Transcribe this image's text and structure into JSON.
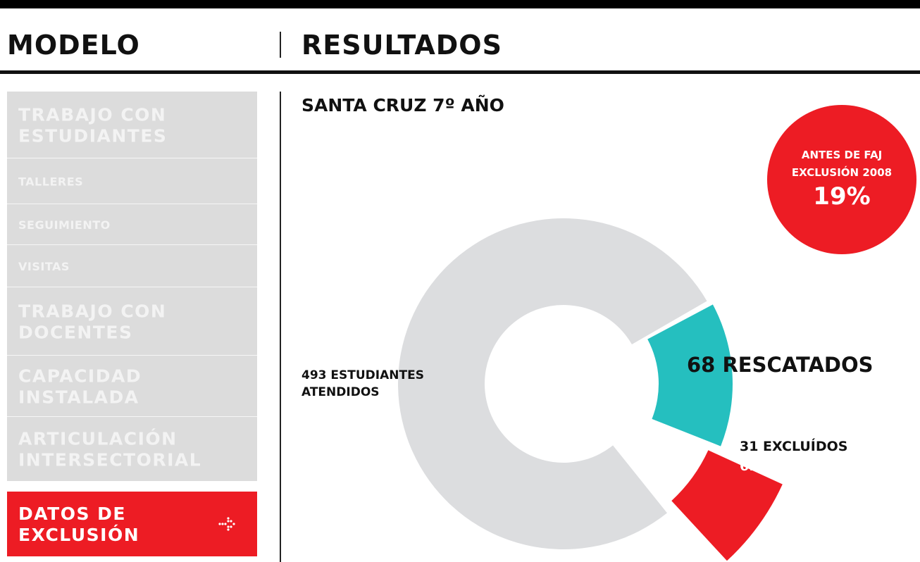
{
  "header": {
    "left": "MODELO",
    "right": "RESULTADOS"
  },
  "sidebar": [
    {
      "lines": [
        "TRABAJO CON",
        "ESTUDIANTES"
      ],
      "size": "large"
    },
    {
      "lines": [
        "TALLERES"
      ],
      "size": "small"
    },
    {
      "lines": [
        "SEGUIMIENTO"
      ],
      "size": "small"
    },
    {
      "lines": [
        "VISITAS"
      ],
      "size": "small"
    },
    {
      "lines": [
        "TRABAJO CON",
        "DOCENTES"
      ],
      "size": "large"
    },
    {
      "lines": [
        "CAPACIDAD",
        "INSTALADA"
      ],
      "size": "large"
    },
    {
      "lines": [
        "ARTICULACIÓN",
        "INTERSECTORIAL"
      ],
      "size": "large"
    },
    {
      "lines": [
        "DATOS DE",
        "EXCLUSIÓN"
      ],
      "size": "large",
      "active": true
    }
  ],
  "badge": {
    "lines": [
      "ANTES DE FAJ",
      "EXCLUSIÓN 2008"
    ],
    "value": "19%"
  },
  "chart_data": {
    "type": "donut",
    "title": "SANTA CRUZ 7º AÑO",
    "values": [
      493,
      68,
      31
    ],
    "labels": [
      [
        "493 ESTUDIANTES",
        "ATENDIDOS"
      ],
      [
        "68 RESCATADOS"
      ],
      [
        "31 EXCLUÍDOS",
        "6.2%"
      ]
    ],
    "colors": [
      "#dcdddf",
      "#25bfbf",
      "#ed1c24"
    ]
  }
}
